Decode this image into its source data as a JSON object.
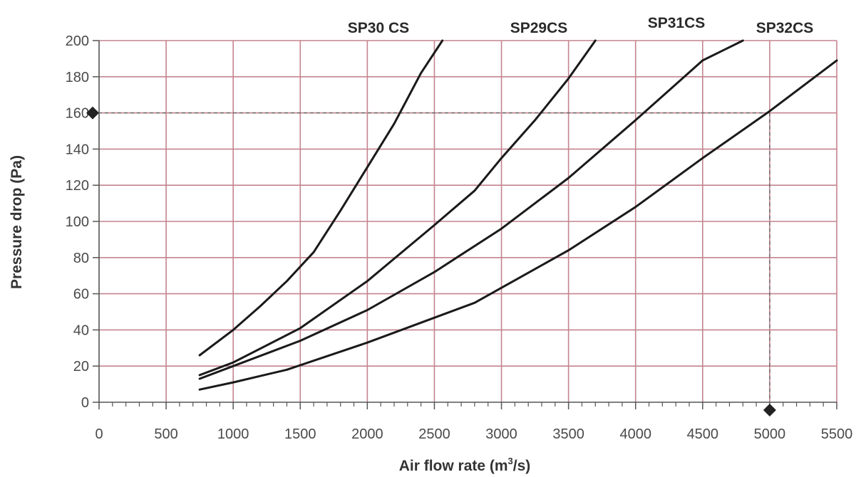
{
  "chart_data": {
    "type": "line",
    "title": "",
    "xlabel": "Air flow rate (m",
    "xlabel_superscript": "3",
    "xlabel_suffix": "/s)",
    "ylabel": "Pressure drop (Pa)",
    "xlim": [
      0,
      5500
    ],
    "ylim": [
      0,
      200
    ],
    "x_ticks": [
      0,
      500,
      1000,
      1500,
      2000,
      2500,
      3000,
      3500,
      4000,
      4500,
      5000,
      5500
    ],
    "y_ticks": [
      0,
      20,
      40,
      60,
      80,
      100,
      120,
      140,
      160,
      180,
      200
    ],
    "x_tick_labels": [
      "0",
      "500",
      "1000",
      "1500",
      "2000",
      "2500",
      "3000",
      "3500",
      "4000",
      "4500",
      "5000",
      "5500"
    ],
    "y_tick_labels": [
      "0",
      "20",
      "40",
      "60",
      "80",
      "100",
      "120",
      "140",
      "160",
      "180",
      "200"
    ],
    "grid": true,
    "grid_color": "#c4848f",
    "line_color": "#1a1a1a",
    "reference": {
      "x": 5000,
      "y": 160,
      "style": "dashed"
    },
    "series": [
      {
        "name": "SP30 CS",
        "x": [
          750,
          1000,
          1200,
          1400,
          1600,
          1800,
          2000,
          2200,
          2400,
          2560
        ],
        "y": [
          26,
          40,
          53,
          67,
          83,
          106,
          130,
          154,
          182,
          200
        ]
      },
      {
        "name": "SP29CS",
        "x": [
          750,
          1000,
          1500,
          2000,
          2500,
          2800,
          3000,
          3250,
          3500,
          3700
        ],
        "y": [
          15,
          22,
          41,
          67,
          98,
          117,
          135,
          156,
          179,
          200
        ]
      },
      {
        "name": "SP31CS",
        "x": [
          750,
          1000,
          1500,
          2000,
          2500,
          3000,
          3500,
          4000,
          4500,
          4800
        ],
        "y": [
          13,
          20,
          34,
          51,
          72,
          96,
          124,
          156,
          189,
          200
        ]
      },
      {
        "name": "SP32CS",
        "x": [
          750,
          1000,
          1400,
          2000,
          2800,
          3500,
          4000,
          4500,
          5000,
          5500
        ],
        "y": [
          7,
          11,
          18,
          33,
          55,
          84,
          108,
          135,
          161,
          189
        ]
      }
    ]
  }
}
